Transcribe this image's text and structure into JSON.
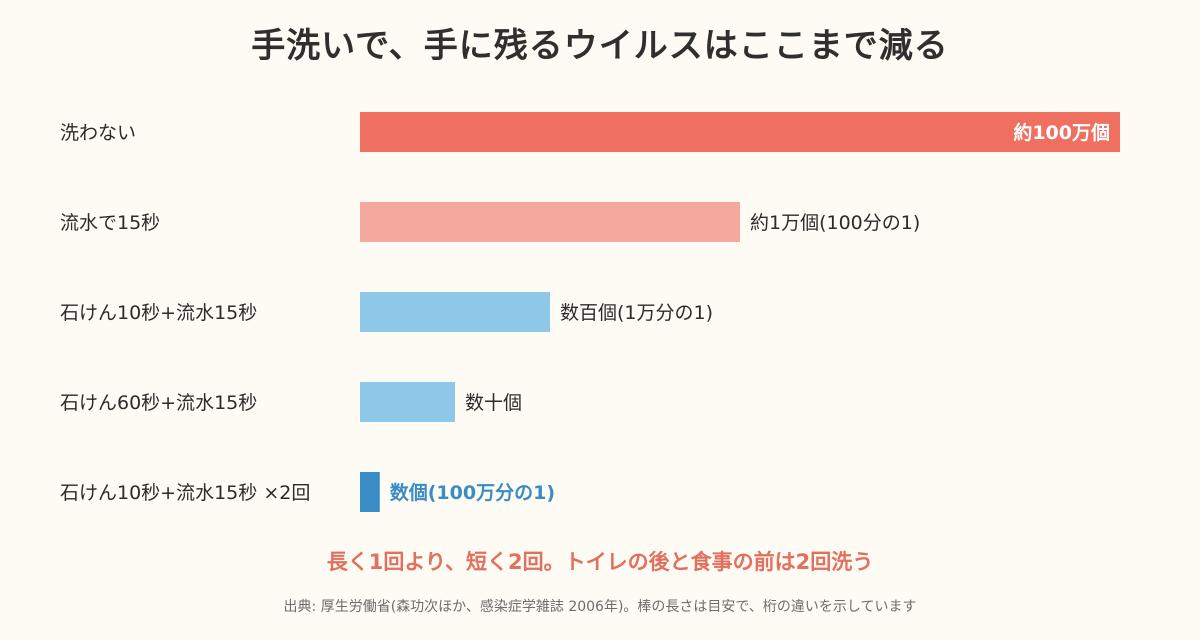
{
  "chart_data": {
    "type": "bar",
    "orientation": "horizontal",
    "title": "手洗いで、手に残るウイルスはここまで減る",
    "categories": [
      "洗わない",
      "流水で15秒",
      "石けん10秒+流水15秒",
      "石けん60秒+流水15秒",
      "石けん10秒+流水15秒 ×2回"
    ],
    "values": [
      100,
      50,
      25,
      12.5,
      2.6
    ],
    "value_labels": [
      "約100万個",
      "約1万個(100分の1)",
      "数百個(1万分の1)",
      "数十個",
      "数個(100万分の1)"
    ],
    "bar_colors": [
      "#ef6f60",
      "#f5a89e",
      "#8ec8e8",
      "#8ec8e8",
      "#3a8cc4"
    ],
    "label_colors": [
      "#ffffff",
      "#2b2b2b",
      "#2b2b2b",
      "#2b2b2b",
      "#3a8cc4"
    ],
    "label_inside": [
      true,
      false,
      false,
      false,
      false
    ],
    "value_scale": "relative bar length (visual guide, not to scale)",
    "grid": false,
    "legend": "none"
  },
  "tagline": "長く1回より、短く2回。トイレの後と食事の前は2回洗う",
  "source": "出典: 厚生労働省(森功次ほか、感染症学雑誌 2006年)。棒の長さは目安で、桁の違いを示しています"
}
